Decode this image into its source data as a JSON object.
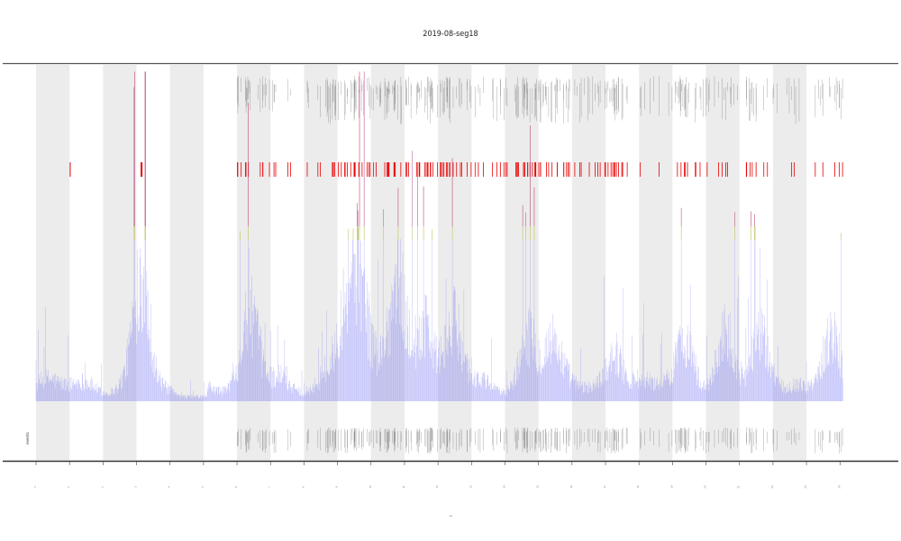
{
  "chart_data": {
    "type": "line",
    "title": "2019-08-seg18",
    "xlabel": "t",
    "ylabel": "",
    "side_label": "events",
    "x_ticks": [
      "0",
      "1",
      "2",
      "3",
      "4",
      "5",
      "6",
      "7",
      "8",
      "9",
      "10",
      "11",
      "12",
      "13",
      "14",
      "15",
      "16",
      "17",
      "18",
      "19",
      "20",
      "21",
      "22",
      "23",
      "24"
    ],
    "xlim": [
      0,
      24.8
    ],
    "ylim": [
      0,
      1
    ],
    "thresholds": {
      "yellow_band": [
        0.48,
        0.52
      ],
      "red_level": 0.75
    },
    "shaded_periods": [
      [
        0,
        1
      ],
      [
        2,
        3
      ],
      [
        4,
        5
      ],
      [
        6,
        7
      ],
      [
        8,
        9
      ],
      [
        10,
        11
      ],
      [
        12,
        13
      ],
      [
        14,
        15
      ],
      [
        16,
        17
      ],
      [
        18,
        19
      ],
      [
        20,
        21
      ],
      [
        22,
        23
      ]
    ],
    "hot_spots": [
      [
        3.15,
        0.85
      ],
      [
        6.4,
        0.45
      ],
      [
        9.2,
        0.42
      ],
      [
        9.6,
        0.58
      ],
      [
        10.8,
        0.6
      ],
      [
        11.6,
        0.4
      ],
      [
        12.5,
        0.42
      ],
      [
        14.7,
        0.35
      ],
      [
        15.4,
        0.3
      ],
      [
        17.3,
        0.28
      ],
      [
        19.4,
        0.32
      ],
      [
        20.6,
        0.4
      ],
      [
        21.6,
        0.3
      ],
      [
        23.7,
        0.4
      ]
    ],
    "grid": false,
    "colors": {
      "signal": "#7f7ff2",
      "shade": "#ececec",
      "yellow": "#f2f200",
      "red": "#e80000",
      "event_mark": "#666666",
      "axis": "#444444"
    }
  }
}
